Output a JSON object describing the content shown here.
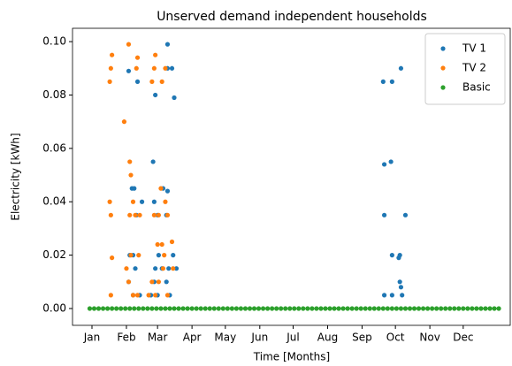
{
  "chart_data": {
    "type": "scatter",
    "title": "Unserved demand independent households",
    "xlabel": "Time [Months]",
    "ylabel": "Electricity [kWh]",
    "xlim": [
      -17.5,
      376.3
    ],
    "ylim": [
      -0.0063,
      0.105
    ],
    "xticks": [
      {
        "value": 0,
        "label": "Jan"
      },
      {
        "value": 31,
        "label": "Feb"
      },
      {
        "value": 59,
        "label": "Mar"
      },
      {
        "value": 90,
        "label": "Apr"
      },
      {
        "value": 120,
        "label": "May"
      },
      {
        "value": 151,
        "label": "Jun"
      },
      {
        "value": 181,
        "label": "Jul"
      },
      {
        "value": 212,
        "label": "Aug"
      },
      {
        "value": 243,
        "label": "Sep"
      },
      {
        "value": 273,
        "label": "Oct"
      },
      {
        "value": 304,
        "label": "Nov"
      },
      {
        "value": 334,
        "label": "Dec"
      }
    ],
    "yticks": [
      {
        "value": 0,
        "label": "0.00"
      },
      {
        "value": 0.02,
        "label": "0.02"
      },
      {
        "value": 0.04,
        "label": "0.04"
      },
      {
        "value": 0.06,
        "label": "0.06"
      },
      {
        "value": 0.08,
        "label": "0.08"
      },
      {
        "value": 0.1,
        "label": "0.10"
      }
    ],
    "legend": "upper right",
    "series": [
      {
        "name": "TV 1",
        "color": "#1f77b4",
        "x": [
          33,
          36,
          38,
          41,
          37,
          34,
          39,
          33,
          37,
          43,
          45,
          40,
          55,
          56,
          59,
          57,
          68,
          68,
          68,
          74,
          72,
          64,
          67,
          60,
          63,
          69,
          76,
          56,
          59,
          67,
          70,
          53,
          57,
          73,
          262,
          270,
          278,
          263,
          269,
          263,
          282,
          270,
          276,
          277,
          277,
          278,
          263,
          270,
          279
        ],
        "values": [
          0.089,
          0.045,
          0.045,
          0.085,
          0.02,
          0.02,
          0.015,
          0.01,
          0.005,
          0.005,
          0.04,
          0.035,
          0.055,
          0.04,
          0.035,
          0.08,
          0.099,
          0.044,
          0.09,
          0.079,
          0.09,
          0.045,
          0.035,
          0.02,
          0.015,
          0.015,
          0.015,
          0.01,
          0.005,
          0.01,
          0.005,
          0.005,
          0.015,
          0.02,
          0.085,
          0.085,
          0.09,
          0.054,
          0.055,
          0.035,
          0.035,
          0.02,
          0.019,
          0.02,
          0.01,
          0.008,
          0.005,
          0.005,
          0.005
        ]
      },
      {
        "name": "TV 2",
        "color": "#ff7f0e",
        "x": [
          16,
          17,
          18,
          16,
          17,
          18,
          17,
          29,
          33,
          34,
          35,
          40,
          41,
          37,
          34,
          39,
          43,
          31,
          33,
          37,
          41,
          35,
          42,
          54,
          56,
          57,
          63,
          66,
          62,
          66,
          56,
          60,
          68,
          59,
          63,
          72,
          54,
          60,
          64,
          68,
          57,
          51,
          65,
          73
        ],
        "values": [
          0.085,
          0.09,
          0.095,
          0.04,
          0.035,
          0.019,
          0.005,
          0.07,
          0.099,
          0.055,
          0.05,
          0.09,
          0.094,
          0.04,
          0.035,
          0.035,
          0.035,
          0.015,
          0.01,
          0.005,
          0.005,
          0.02,
          0.02,
          0.085,
          0.09,
          0.095,
          0.085,
          0.09,
          0.045,
          0.04,
          0.035,
          0.035,
          0.035,
          0.024,
          0.024,
          0.025,
          0.01,
          0.01,
          0.015,
          0.005,
          0.005,
          0.005,
          0.02,
          0.015
        ]
      },
      {
        "name": "Basic",
        "color": "#2ca02c",
        "x": [
          -2,
          2,
          6,
          10,
          14,
          18,
          22,
          26,
          30,
          34,
          38,
          42,
          46,
          50,
          54,
          58,
          62,
          66,
          70,
          74,
          78,
          82,
          86,
          90,
          94,
          98,
          102,
          106,
          110,
          114,
          118,
          122,
          126,
          130,
          134,
          138,
          142,
          146,
          150,
          154,
          158,
          162,
          166,
          170,
          174,
          178,
          182,
          186,
          190,
          194,
          198,
          202,
          206,
          210,
          214,
          218,
          222,
          226,
          230,
          234,
          238,
          242,
          246,
          250,
          254,
          258,
          262,
          266,
          270,
          274,
          278,
          282,
          286,
          290,
          294,
          298,
          302,
          306,
          310,
          314,
          318,
          322,
          326,
          330,
          334,
          338,
          342,
          346,
          350,
          354,
          358,
          362,
          366
        ],
        "values": [
          0,
          0,
          0,
          0,
          0,
          0,
          0,
          0,
          0,
          0,
          0,
          0,
          0,
          0,
          0,
          0,
          0,
          0,
          0,
          0,
          0,
          0,
          0,
          0,
          0,
          0,
          0,
          0,
          0,
          0,
          0,
          0,
          0,
          0,
          0,
          0,
          0,
          0,
          0,
          0,
          0,
          0,
          0,
          0,
          0,
          0,
          0,
          0,
          0,
          0,
          0,
          0,
          0,
          0,
          0,
          0,
          0,
          0,
          0,
          0,
          0,
          0,
          0,
          0,
          0,
          0,
          0,
          0,
          0,
          0,
          0,
          0,
          0,
          0,
          0,
          0,
          0,
          0,
          0,
          0,
          0,
          0,
          0,
          0,
          0,
          0,
          0,
          0,
          0,
          0,
          0,
          0,
          0
        ]
      }
    ]
  }
}
